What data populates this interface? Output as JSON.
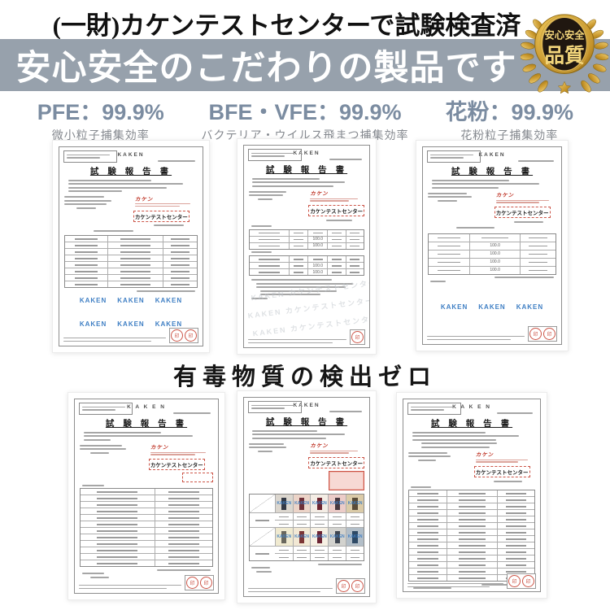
{
  "page": {
    "title_note": "(一財)カケンテストセンターで試験検査済",
    "banner_title": "安心安全のこだわりの製品です",
    "section_title": "有毒物質の検出ゼロ"
  },
  "badge": {
    "line1": "安心安全",
    "line2": "品質"
  },
  "stats": [
    {
      "value": "PFE：99.9%",
      "label": "微小粒子捕集効率"
    },
    {
      "value": "BFE・VFE：99.9%",
      "label": "バクテリア・ウイルス飛まつ捕集効率"
    },
    {
      "value": "花粉：99.9%",
      "label": "花粉粒子捕集効率"
    }
  ],
  "documents": {
    "kaken": "KAKEN",
    "kaken_spaced": "K A K E N",
    "report_title": "試 験 報 告 書",
    "stamp_logo": "カケン",
    "stamp_org": "カケンテストセンター",
    "watermark": "KAKEN",
    "ghost_watermark": "KAKEN カケンテストセンター KAKEN",
    "seal_char": "印",
    "val100": "100.0"
  },
  "samples": {
    "row1": [
      {
        "bg": "#dcd7cf",
        "fg": "#343a46"
      },
      {
        "bg": "#ecd4c8",
        "fg": "#6e3038"
      },
      {
        "bg": "#f4ede5",
        "fg": "#6d2530"
      },
      {
        "bg": "#ecccc8",
        "fg": "#483840"
      },
      {
        "bg": "#dbcba8",
        "fg": "#5a4c38"
      }
    ],
    "row2": [
      {
        "bg": "#f0ead0",
        "fg": "#6a685e"
      },
      {
        "bg": "#f2e8d4",
        "fg": "#7c3636"
      },
      {
        "bg": "#f7f1e4",
        "fg": "#6b2433"
      },
      {
        "bg": "#d2d2ce",
        "fg": "#3e4652"
      },
      {
        "bg": "#b2bec8",
        "fg": "#2e4a66"
      }
    ]
  },
  "colors": {
    "banner": "#97a1ac",
    "stat": "#7b8ca1",
    "statlabel": "#85898f",
    "wm": "#3f7fc4",
    "red": "#cc5548",
    "gold": "#c9972c"
  }
}
